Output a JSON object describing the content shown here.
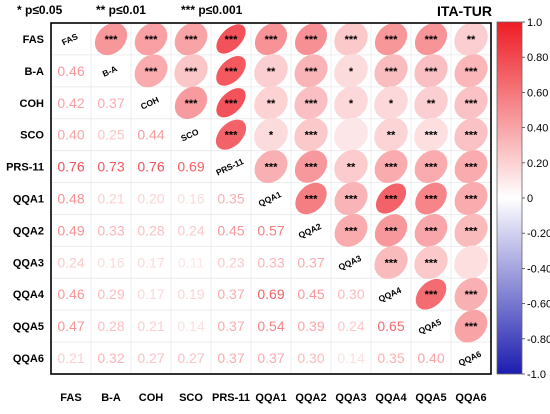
{
  "chart_data": {
    "type": "heatmap",
    "group_title": "ITA-TUR",
    "significance_legend": [
      "* p≤0.05",
      "** p≤0.01",
      "*** p≤0.001"
    ],
    "variables": [
      "FAS",
      "B-A",
      "COH",
      "SCO",
      "PRS-11",
      "QQA1",
      "QQA2",
      "QQA3",
      "QQA4",
      "QQA5",
      "QQA6"
    ],
    "lower_values": [
      [
        null,
        null,
        null,
        null,
        null,
        null,
        null,
        null,
        null,
        null,
        null
      ],
      [
        0.46,
        null,
        null,
        null,
        null,
        null,
        null,
        null,
        null,
        null,
        null
      ],
      [
        0.42,
        0.37,
        null,
        null,
        null,
        null,
        null,
        null,
        null,
        null,
        null
      ],
      [
        0.4,
        0.25,
        0.44,
        null,
        null,
        null,
        null,
        null,
        null,
        null,
        null
      ],
      [
        0.76,
        0.73,
        0.76,
        0.69,
        null,
        null,
        null,
        null,
        null,
        null,
        null
      ],
      [
        0.48,
        0.21,
        0.2,
        0.16,
        0.35,
        null,
        null,
        null,
        null,
        null,
        null
      ],
      [
        0.49,
        0.33,
        0.28,
        0.24,
        0.45,
        0.57,
        null,
        null,
        null,
        null,
        null
      ],
      [
        0.24,
        0.16,
        0.17,
        0.11,
        0.23,
        0.33,
        0.37,
        null,
        null,
        null,
        null
      ],
      [
        0.46,
        0.29,
        0.17,
        0.19,
        0.37,
        0.69,
        0.45,
        0.3,
        null,
        null,
        null
      ],
      [
        0.47,
        0.28,
        0.21,
        0.14,
        0.37,
        0.54,
        0.39,
        0.24,
        0.65,
        null,
        null
      ],
      [
        0.21,
        0.32,
        0.27,
        0.27,
        0.37,
        0.37,
        0.3,
        0.14,
        0.35,
        0.4,
        null
      ]
    ],
    "upper_stars": [
      [
        null,
        "***",
        "***",
        "***",
        "***",
        "***",
        "***",
        "***",
        "***",
        "***",
        "**"
      ],
      [
        null,
        null,
        "***",
        "***",
        "***",
        "**",
        "***",
        "*",
        "***",
        "***",
        "***"
      ],
      [
        null,
        null,
        null,
        "***",
        "***",
        "**",
        "***",
        "*",
        "*",
        "**",
        "***"
      ],
      [
        null,
        null,
        null,
        null,
        "***",
        "*",
        "***",
        "",
        "**",
        "***",
        "***"
      ],
      [
        null,
        null,
        null,
        null,
        null,
        "***",
        "***",
        "**",
        "***",
        "***",
        "***"
      ],
      [
        null,
        null,
        null,
        null,
        null,
        null,
        "***",
        "***",
        "***",
        "***",
        "***"
      ],
      [
        null,
        null,
        null,
        null,
        null,
        null,
        null,
        "***",
        "***",
        "***",
        "***"
      ],
      [
        null,
        null,
        null,
        null,
        null,
        null,
        null,
        null,
        "***",
        "***",
        ""
      ],
      [
        null,
        null,
        null,
        null,
        null,
        null,
        null,
        null,
        null,
        "***",
        "***"
      ],
      [
        null,
        null,
        null,
        null,
        null,
        null,
        null,
        null,
        null,
        null,
        "***"
      ],
      [
        null,
        null,
        null,
        null,
        null,
        null,
        null,
        null,
        null,
        null,
        null
      ]
    ],
    "colorbar_ticks": [
      "1.0",
      "0.80",
      "0.60",
      "0.40",
      "0.20",
      "0",
      "-0.20",
      "-0.40",
      "-0.60",
      "-0.80",
      "-1.0"
    ],
    "color_range": [
      -1.0,
      1.0
    ],
    "colors": {
      "negative": "#1c1cb0",
      "zero": "#ffffff",
      "positive": "#ee1c24"
    },
    "grid": true
  }
}
